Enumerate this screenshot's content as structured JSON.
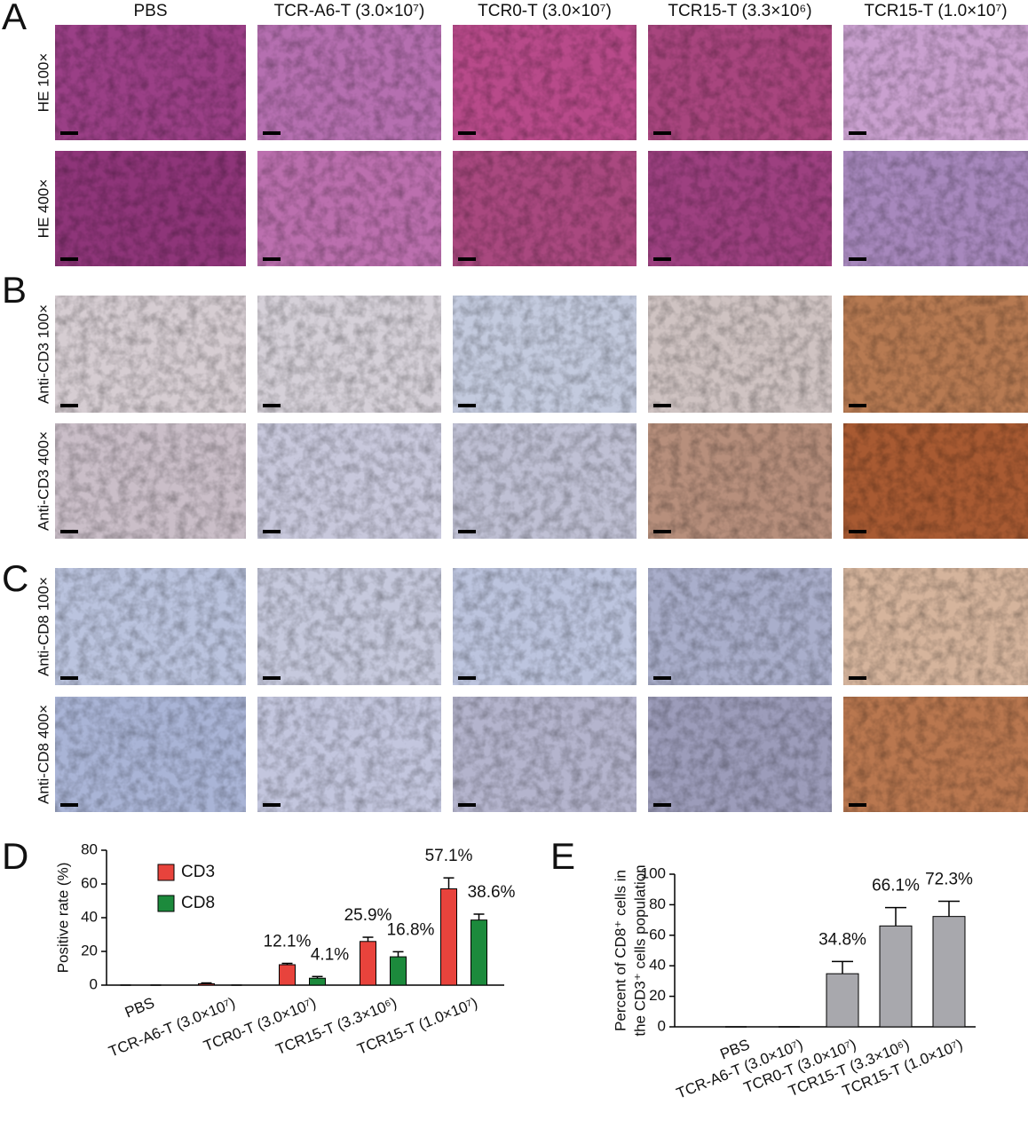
{
  "panel_labels": [
    "A",
    "B",
    "C",
    "D",
    "E"
  ],
  "column_headers": [
    "PBS",
    "TCR-A6-T (3.0×10⁷)",
    "TCR0-T (3.0×10⁷)",
    "TCR15-T (3.3×10⁶)",
    "TCR15-T (1.0×10⁷)"
  ],
  "row_labels": [
    "HE 100×",
    "HE 400×",
    "Anti-CD3 100×",
    "Anti-CD3 400×",
    "Anti-CD8 100×",
    "Anti-CD8 400×"
  ],
  "chart_data": [
    {
      "type": "bar",
      "y_label": "Positive rate (%)",
      "categories": [
        "PBS",
        "TCR-A6-T (3.0×10⁷)",
        "TCR0-T (3.0×10⁷)",
        "TCR15-T (3.3×10⁶)",
        "TCR15-T (1.0×10⁷)"
      ],
      "series": [
        {
          "name": "CD3",
          "color": "#e8433c",
          "values": [
            0,
            0.8,
            12.1,
            25.9,
            57.1
          ],
          "errors": [
            0,
            0.5,
            0.8,
            2.5,
            6.5
          ],
          "value_labels": [
            null,
            null,
            "12.1%",
            "25.9%",
            "57.1%"
          ]
        },
        {
          "name": "CD8",
          "color": "#1c8a3c",
          "values": [
            0,
            0,
            4.1,
            16.8,
            38.6
          ],
          "errors": [
            0,
            0,
            1,
            3,
            3.5
          ],
          "value_labels": [
            null,
            null,
            "4.1%",
            "16.8%",
            "38.6%"
          ]
        }
      ],
      "ylim": [
        0,
        80
      ],
      "yticks": [
        0,
        20,
        40,
        60,
        80
      ],
      "legend": "upper left"
    },
    {
      "type": "bar",
      "y_label": [
        "Percent of CD8⁺ cells in",
        "the CD3⁺ cells population"
      ],
      "categories": [
        "PBS",
        "TCR-A6-T (3.0×10⁷)",
        "TCR0-T (3.0×10⁷)",
        "TCR15-T (3.3×10⁶)",
        "TCR15-T (1.0×10⁷)"
      ],
      "values": [
        0,
        0,
        34.8,
        66.1,
        72.3
      ],
      "errors": [
        0,
        0,
        8,
        12,
        10
      ],
      "value_labels": [
        null,
        null,
        "34.8%",
        "66.1%",
        "72.3%"
      ],
      "color": "#a8a8ad",
      "ylim": [
        0,
        100
      ],
      "yticks": [
        0,
        20,
        40,
        60,
        80,
        100
      ]
    }
  ]
}
